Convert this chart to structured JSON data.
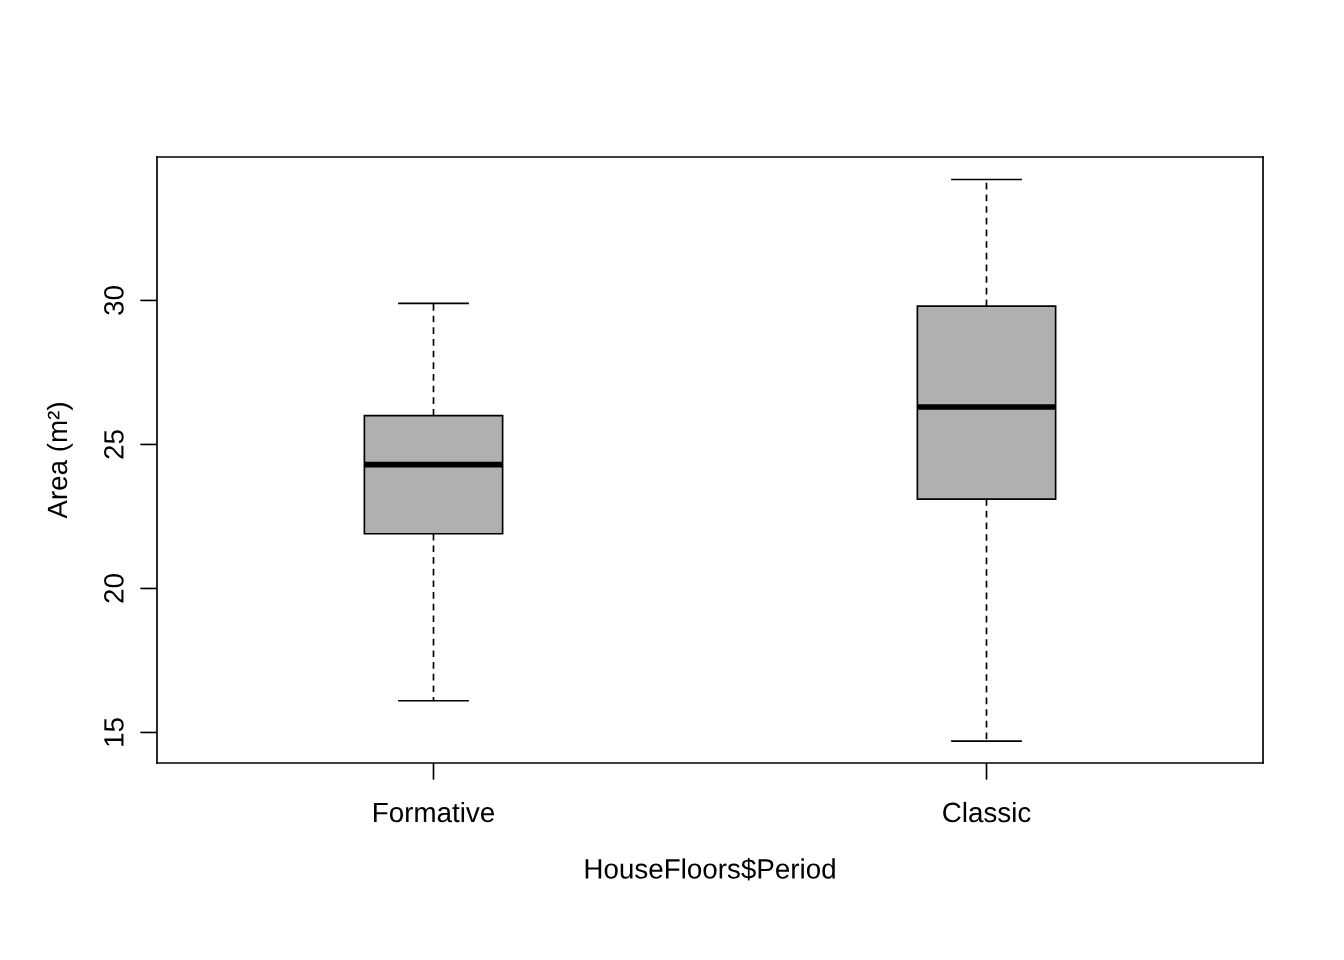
{
  "chart_data": {
    "type": "box",
    "xlabel": "HouseFloors$Period",
    "ylabel": "Area (m²)",
    "categories": [
      "Formative",
      "Classic"
    ],
    "boxes": [
      {
        "low": 16.1,
        "q1": 21.9,
        "median": 24.3,
        "q3": 26.0,
        "high": 29.9
      },
      {
        "low": 14.7,
        "q1": 23.1,
        "median": 26.3,
        "q3": 29.8,
        "high": 34.2
      }
    ],
    "color": "#b0b0b0",
    "ylim": [
      13.94,
      34.98
    ],
    "yticks": [
      15,
      20,
      25,
      30
    ],
    "grid": false,
    "line_style": "dashed"
  }
}
